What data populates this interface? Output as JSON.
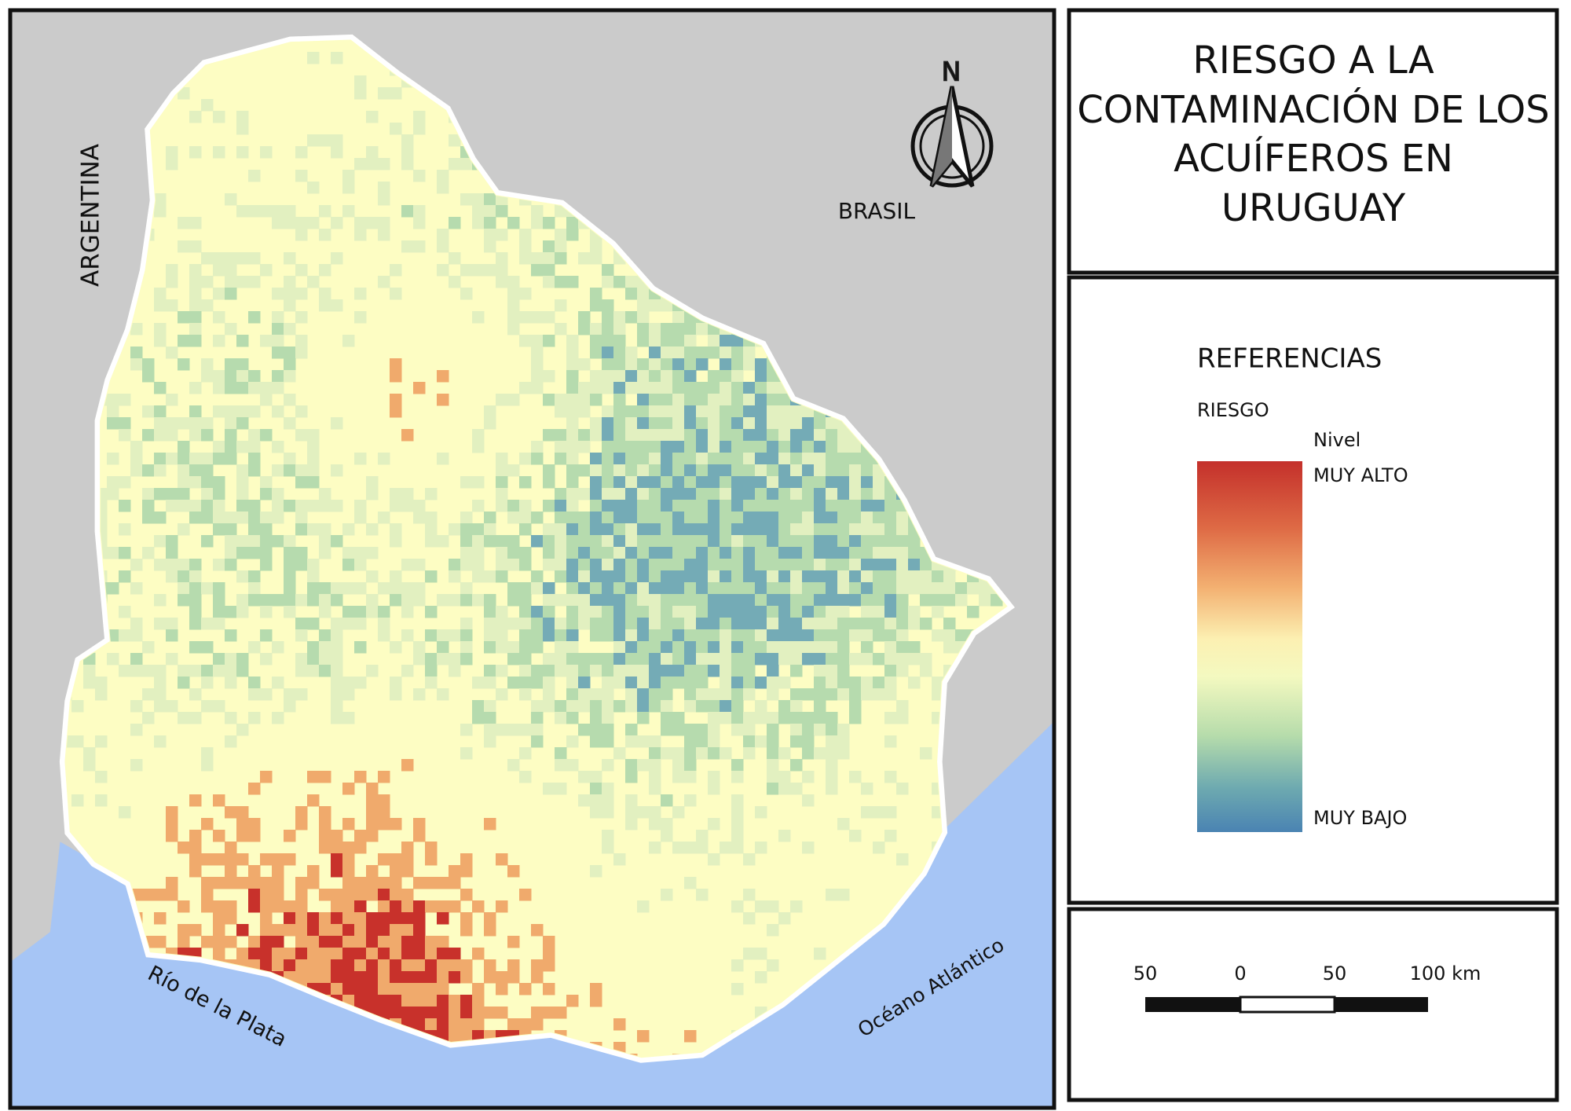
{
  "title_lines": [
    "RIESGO A LA",
    "CONTAMINACIÓN DE LOS",
    "ACUÍFEROS EN",
    "URUGUAY"
  ],
  "legend": {
    "heading": "REFERENCIAS",
    "variable": "RIESGO",
    "field": "Nivel",
    "high": "MUY ALTO",
    "low": "MUY BAJO"
  },
  "map_labels": {
    "north": "N",
    "argentina": "ARGENTINA",
    "brasil": "BRASIL",
    "river": "Río de la Plata",
    "ocean": "Océano Atlántico"
  },
  "scale_bar": {
    "labels": [
      "50",
      "0",
      "50",
      "100 km"
    ]
  }
}
